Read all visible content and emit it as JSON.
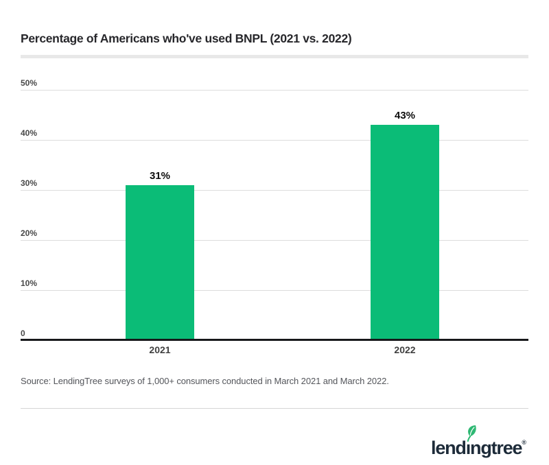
{
  "title": "Percentage of Americans who've used BNPL (2021 vs. 2022)",
  "chart_data": {
    "type": "bar",
    "title": "Percentage of Americans who've used BNPL (2021 vs. 2022)",
    "categories": [
      "2021",
      "2022"
    ],
    "values": [
      31,
      43
    ],
    "value_labels": [
      "31%",
      "43%"
    ],
    "xlabel": "",
    "ylabel": "",
    "ylim": [
      0,
      50
    ],
    "yticks": [
      {
        "label": "50%",
        "value": 50
      },
      {
        "label": "40%",
        "value": 40
      },
      {
        "label": "30%",
        "value": 30
      },
      {
        "label": "20%",
        "value": 20
      },
      {
        "label": "10%",
        "value": 10
      },
      {
        "label": "0",
        "value": 0
      }
    ],
    "grid": true,
    "legend": "none",
    "bar_color": "#0bbc77"
  },
  "source": "Source: LendingTree surveys of 1,000+ consumers conducted in March 2021 and March 2022.",
  "logo": {
    "part1": "lend",
    "dotless_i": "ı",
    "part2": "ngtree",
    "registered": "®",
    "leaf_icon": "leaf-icon",
    "text_color": "#1d2b39",
    "leaf_color": "#2eb873"
  },
  "colors": {
    "bar": "#0bbc77",
    "gridline": "#dcdcdc",
    "axis_line": "#17181a",
    "title_text": "#27272b",
    "divider_thick": "#e8e8e8",
    "divider_thin": "#d6d6d6"
  }
}
